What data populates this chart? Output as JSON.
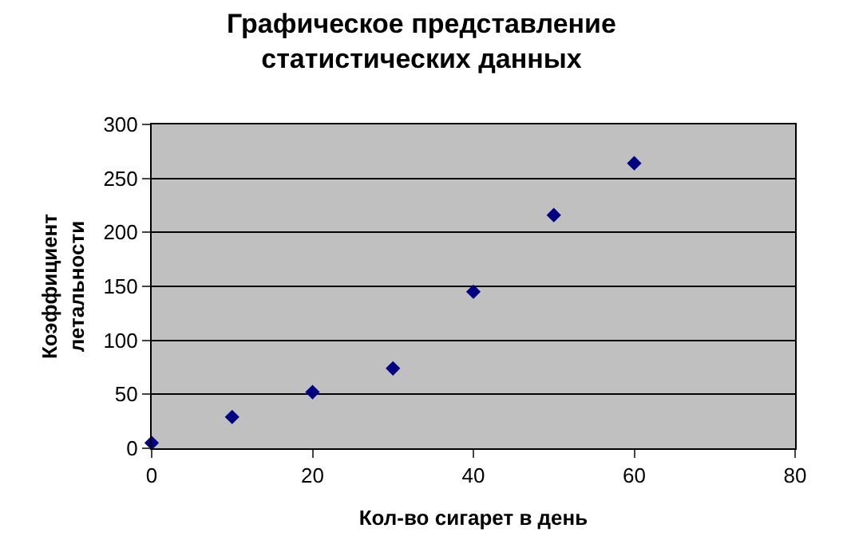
{
  "chart_data": {
    "type": "scatter",
    "title": "Графическое представление\nстатистических данных",
    "xlabel": "Кол-во сигарет в день",
    "ylabel": "Коэффициент\nлетальности",
    "x": [
      0,
      10,
      20,
      30,
      40,
      50,
      60
    ],
    "series": [
      {
        "color": "#000080",
        "values": [
          5,
          29,
          52,
          74,
          145,
          216,
          264
        ]
      }
    ],
    "xlim": [
      0,
      80
    ],
    "xticks": [
      0,
      20,
      40,
      60,
      80
    ],
    "ylim": [
      0,
      300
    ],
    "yticks": [
      0,
      50,
      100,
      150,
      200,
      250,
      300
    ],
    "grid": "y",
    "marker": "diamond"
  }
}
